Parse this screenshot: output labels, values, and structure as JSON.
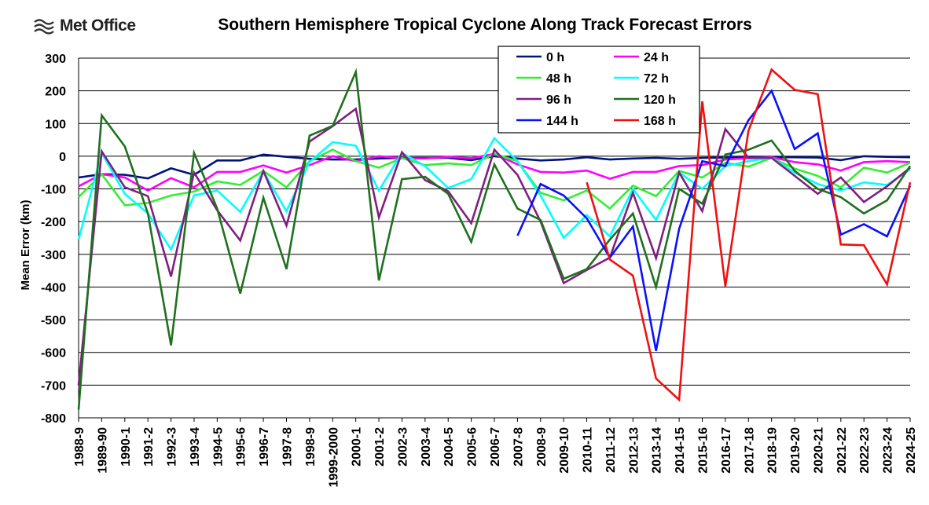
{
  "logo": {
    "text": "Met Office"
  },
  "colors": {
    "0 h": "#00137a",
    "24 h": "#ff00ff",
    "48 h": "#33ee33",
    "72 h": "#00ffff",
    "96 h": "#7f1f7f",
    "120 h": "#1f701f",
    "144 h": "#0a10ff",
    "168 h": "#ee1111"
  },
  "chart_data": {
    "type": "line",
    "title": "Southern Hemisphere Tropical Cyclone Along Track Forecast Errors",
    "xlabel": "",
    "ylabel": "Mean Error (km)",
    "ylim": [
      -800,
      300
    ],
    "yticks": [
      300,
      200,
      100,
      0,
      -100,
      -200,
      -300,
      -400,
      -500,
      -600,
      -700,
      -800
    ],
    "grid": true,
    "legend_position": "top-center",
    "categories": [
      "1988-9",
      "1989-90",
      "1990-1",
      "1991-2",
      "1992-3",
      "1993-4",
      "1994-5",
      "1995-6",
      "1996-7",
      "1997-8",
      "1998-9",
      "1999-2000",
      "2000-1",
      "2001-2",
      "2002-3",
      "2003-4",
      "2004-5",
      "2005-6",
      "2006-7",
      "2007-8",
      "2008-9",
      "2009-10",
      "2010-11",
      "2011-12",
      "2012-13",
      "2013-14",
      "2014-15",
      "2015-16",
      "2016-17",
      "2017-18",
      "2018-19",
      "2019-20",
      "2020-21",
      "2021-22",
      "2022-23",
      "2023-24",
      "2024-25"
    ],
    "series": [
      {
        "name": "0 h",
        "values": [
          -65,
          -55,
          -57,
          -68,
          -37,
          -57,
          -13,
          -13,
          5,
          -2,
          -8,
          -10,
          -10,
          -7,
          -5,
          -5,
          -5,
          -12,
          0,
          -7,
          -13,
          -10,
          -3,
          -10,
          -7,
          -5,
          -8,
          -5,
          -4,
          -3,
          -3,
          -3,
          -4,
          -12,
          0,
          -2,
          -3
        ]
      },
      {
        "name": "24 h",
        "values": [
          -92,
          -55,
          -65,
          -105,
          -67,
          -95,
          -48,
          -48,
          -28,
          -50,
          -27,
          0,
          -15,
          0,
          -6,
          -7,
          -2,
          -6,
          7,
          -25,
          -48,
          -50,
          -44,
          -69,
          -48,
          -48,
          -30,
          -27,
          -10,
          -6,
          -3,
          -18,
          -25,
          -44,
          -18,
          -15,
          -18
        ]
      },
      {
        "name": "48 h",
        "values": [
          -125,
          -55,
          -150,
          -143,
          -120,
          -108,
          -77,
          -88,
          -45,
          -95,
          -15,
          20,
          -15,
          -35,
          -6,
          -27,
          -22,
          -27,
          7,
          -15,
          -112,
          -135,
          -105,
          -160,
          -90,
          -122,
          -45,
          -65,
          -20,
          -32,
          -5,
          -38,
          -60,
          -95,
          -35,
          -50,
          -20
        ]
      },
      {
        "name": "72 h",
        "values": [
          -255,
          10,
          -115,
          -175,
          -285,
          -120,
          -105,
          -170,
          -47,
          -168,
          -17,
          43,
          32,
          -105,
          10,
          -30,
          -97,
          -70,
          55,
          -15,
          -120,
          -250,
          -180,
          -245,
          -100,
          -195,
          -50,
          -100,
          -30,
          -15,
          -5,
          -50,
          -85,
          -105,
          -80,
          -88,
          -40
        ]
      },
      {
        "name": "96 h",
        "values": [
          -700,
          15,
          -95,
          -122,
          -368,
          -50,
          -165,
          -258,
          -45,
          -212,
          45,
          92,
          145,
          -187,
          12,
          -73,
          -107,
          -205,
          20,
          -57,
          -200,
          -388,
          -348,
          -310,
          -112,
          -312,
          -50,
          -168,
          83,
          -5,
          -5,
          -60,
          -115,
          -65,
          -140,
          -92,
          -35
        ]
      },
      {
        "name": "120 h",
        "values": [
          -775,
          125,
          30,
          -175,
          -578,
          10,
          -160,
          -420,
          -127,
          -345,
          63,
          93,
          258,
          -380,
          -70,
          -63,
          -115,
          -262,
          -25,
          -160,
          -195,
          -375,
          -345,
          -255,
          -175,
          -400,
          -100,
          -145,
          5,
          20,
          48,
          -45,
          -100,
          -125,
          -175,
          -135,
          -30
        ]
      },
      {
        "name": "144 h",
        "values": [
          null,
          null,
          null,
          null,
          null,
          null,
          null,
          null,
          null,
          null,
          null,
          null,
          null,
          null,
          null,
          null,
          null,
          null,
          null,
          -243,
          -85,
          -120,
          -190,
          -310,
          -215,
          -595,
          -222,
          -15,
          -30,
          110,
          200,
          22,
          70,
          -240,
          -208,
          -245,
          -90
        ]
      },
      {
        "name": "168 h",
        "values": [
          null,
          null,
          null,
          null,
          null,
          null,
          null,
          null,
          null,
          null,
          null,
          null,
          null,
          null,
          null,
          null,
          null,
          null,
          null,
          null,
          null,
          null,
          -80,
          -316,
          -365,
          -680,
          -745,
          168,
          -398,
          78,
          265,
          203,
          190,
          -270,
          -272,
          -392,
          -80
        ]
      }
    ]
  }
}
